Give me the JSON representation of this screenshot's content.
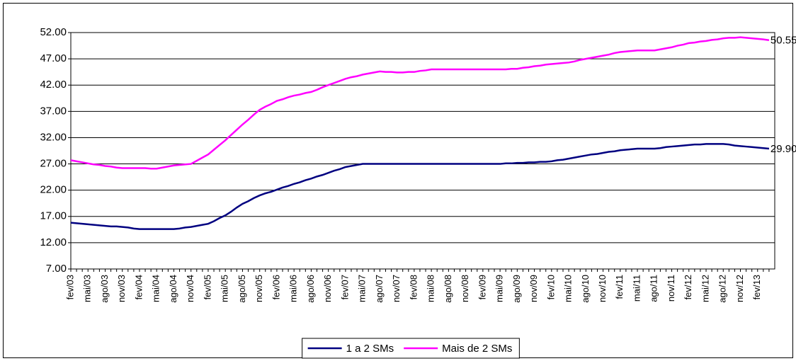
{
  "chart_data": {
    "type": "line",
    "categories": [
      "fev/03",
      null,
      null,
      "mai/03",
      null,
      null,
      "ago/03",
      null,
      null,
      "nov/03",
      null,
      null,
      "fev/04",
      null,
      null,
      "mai/04",
      null,
      null,
      "ago/04",
      null,
      null,
      "nov/04",
      null,
      null,
      "fev/05",
      null,
      null,
      "mai/05",
      null,
      null,
      "ago/05",
      null,
      null,
      "nov/05",
      null,
      null,
      "fev/06",
      null,
      null,
      "mai/06",
      null,
      null,
      "ago/06",
      null,
      null,
      "nov/06",
      null,
      null,
      "fev/07",
      null,
      null,
      "mai/07",
      null,
      null,
      "ago/07",
      null,
      null,
      "nov/07",
      null,
      null,
      "fev/08",
      null,
      null,
      "mai/08",
      null,
      null,
      "ago/08",
      null,
      null,
      "nov/08",
      null,
      null,
      "fev/09",
      null,
      null,
      "mai/09",
      null,
      null,
      "ago/09",
      null,
      null,
      "nov/09",
      null,
      null,
      "fev/10",
      null,
      null,
      "mai/10",
      null,
      null,
      "ago/10",
      null,
      null,
      "nov/10",
      null,
      null,
      "fev/11",
      null,
      null,
      "mai/11",
      null,
      null,
      "ago/11",
      null,
      null,
      "nov/11",
      null,
      null,
      "fev/12",
      null,
      null,
      "mai/12",
      null,
      null,
      "ago/12",
      null,
      null,
      "nov/12",
      null,
      null,
      "fev/13",
      null,
      null
    ],
    "series": [
      {
        "name": "1 a 2 SMs",
        "color": "#000080",
        "values": [
          15.8,
          15.7,
          15.6,
          15.5,
          15.4,
          15.3,
          15.2,
          15.1,
          15.1,
          15.0,
          14.9,
          14.7,
          14.6,
          14.6,
          14.6,
          14.6,
          14.6,
          14.6,
          14.6,
          14.7,
          14.9,
          15.0,
          15.2,
          15.4,
          15.6,
          16.1,
          16.7,
          17.2,
          17.9,
          18.7,
          19.4,
          19.9,
          20.5,
          21.0,
          21.4,
          21.7,
          22.1,
          22.5,
          22.8,
          23.2,
          23.5,
          23.9,
          24.2,
          24.6,
          24.9,
          25.3,
          25.7,
          26.0,
          26.4,
          26.6,
          26.8,
          27.0,
          27.0,
          27.0,
          27.0,
          27.0,
          27.0,
          27.0,
          27.0,
          27.0,
          27.0,
          27.0,
          27.0,
          27.0,
          27.0,
          27.0,
          27.0,
          27.0,
          27.0,
          27.0,
          27.0,
          27.0,
          27.0,
          27.0,
          27.0,
          27.0,
          27.1,
          27.1,
          27.2,
          27.2,
          27.3,
          27.3,
          27.4,
          27.4,
          27.5,
          27.7,
          27.8,
          28.0,
          28.2,
          28.4,
          28.6,
          28.8,
          28.9,
          29.1,
          29.3,
          29.4,
          29.6,
          29.7,
          29.8,
          29.9,
          29.9,
          29.9,
          29.9,
          30.0,
          30.2,
          30.3,
          30.4,
          30.5,
          30.6,
          30.7,
          30.7,
          30.8,
          30.8,
          30.8,
          30.8,
          30.7,
          30.5,
          30.4,
          30.3,
          30.2,
          30.1,
          30.0,
          29.9
        ],
        "value_labels": [
          null,
          null,
          null,
          null,
          null,
          null,
          null,
          null,
          null,
          null,
          null,
          null,
          null,
          null,
          null,
          null,
          null,
          null,
          null,
          null,
          null,
          null,
          null,
          null,
          null,
          null,
          null,
          null,
          null,
          null,
          null,
          null,
          null,
          null,
          null,
          null,
          null,
          null,
          null,
          null,
          null,
          null,
          null,
          null,
          null,
          null,
          null,
          null,
          null,
          null,
          null,
          null,
          null,
          null,
          null,
          null,
          null,
          null,
          null,
          null,
          null,
          null,
          null,
          null,
          null,
          null,
          null,
          null,
          null,
          null,
          null,
          null,
          null,
          null,
          null,
          null,
          null,
          null,
          null,
          null,
          null,
          null,
          null,
          null,
          null,
          null,
          null,
          null,
          null,
          null,
          null,
          null,
          null,
          null,
          null,
          null,
          null,
          null,
          null,
          null,
          null,
          null,
          null,
          null,
          null,
          null,
          null,
          null,
          null,
          null,
          null,
          null,
          null,
          null,
          null,
          null,
          null,
          null,
          null,
          null,
          null,
          null,
          "29.90"
        ]
      },
      {
        "name": "Mais de 2 SMs",
        "color": "#ff00ff",
        "values": [
          27.7,
          27.5,
          27.3,
          27.1,
          26.9,
          26.8,
          26.6,
          26.5,
          26.3,
          26.2,
          26.2,
          26.2,
          26.2,
          26.2,
          26.1,
          26.1,
          26.3,
          26.5,
          26.7,
          26.8,
          26.9,
          27.0,
          27.6,
          28.2,
          28.8,
          29.7,
          30.6,
          31.5,
          32.5,
          33.5,
          34.5,
          35.4,
          36.4,
          37.3,
          37.9,
          38.4,
          39.0,
          39.3,
          39.7,
          40.0,
          40.2,
          40.5,
          40.7,
          41.1,
          41.6,
          42.0,
          42.4,
          42.8,
          43.2,
          43.5,
          43.7,
          44.0,
          44.2,
          44.4,
          44.6,
          44.5,
          44.5,
          44.4,
          44.4,
          44.5,
          44.5,
          44.7,
          44.8,
          45.0,
          45.0,
          45.0,
          45.0,
          45.0,
          45.0,
          45.0,
          45.0,
          45.0,
          45.0,
          45.0,
          45.0,
          45.0,
          45.0,
          45.1,
          45.1,
          45.3,
          45.4,
          45.6,
          45.7,
          45.9,
          46.0,
          46.1,
          46.2,
          46.3,
          46.5,
          46.8,
          47.0,
          47.2,
          47.4,
          47.6,
          47.8,
          48.1,
          48.3,
          48.4,
          48.5,
          48.6,
          48.6,
          48.6,
          48.6,
          48.8,
          49.0,
          49.2,
          49.5,
          49.7,
          50.0,
          50.1,
          50.3,
          50.4,
          50.6,
          50.7,
          50.9,
          51.0,
          51.0,
          51.1,
          51.0,
          50.9,
          50.8,
          50.7,
          50.55
        ],
        "value_labels": [
          null,
          null,
          null,
          null,
          null,
          null,
          null,
          null,
          null,
          null,
          null,
          null,
          null,
          null,
          null,
          null,
          null,
          null,
          null,
          null,
          null,
          null,
          null,
          null,
          null,
          null,
          null,
          null,
          null,
          null,
          null,
          null,
          null,
          null,
          null,
          null,
          null,
          null,
          null,
          null,
          null,
          null,
          null,
          null,
          null,
          null,
          null,
          null,
          null,
          null,
          null,
          null,
          null,
          null,
          null,
          null,
          null,
          null,
          null,
          null,
          null,
          null,
          null,
          null,
          null,
          null,
          null,
          null,
          null,
          null,
          null,
          null,
          null,
          null,
          null,
          null,
          null,
          null,
          null,
          null,
          null,
          null,
          null,
          null,
          null,
          null,
          null,
          null,
          null,
          null,
          null,
          null,
          null,
          null,
          null,
          null,
          null,
          null,
          null,
          null,
          null,
          null,
          null,
          null,
          null,
          null,
          null,
          null,
          null,
          null,
          null,
          null,
          null,
          null,
          null,
          null,
          null,
          null,
          null,
          null,
          null,
          null,
          "50.55"
        ]
      }
    ],
    "ylim": [
      7,
      52
    ],
    "yticks": [
      {
        "value": 7,
        "label": "7.00"
      },
      {
        "value": 12,
        "label": "12.00"
      },
      {
        "value": 17,
        "label": "17.00"
      },
      {
        "value": 22,
        "label": "22.00"
      },
      {
        "value": 27,
        "label": "27.00"
      },
      {
        "value": 32,
        "label": "32.00"
      },
      {
        "value": 37,
        "label": "37.00"
      },
      {
        "value": 42,
        "label": "42.00"
      },
      {
        "value": 47,
        "label": "47.00"
      },
      {
        "value": 52,
        "label": "52.00"
      }
    ],
    "grid": true,
    "legend": "bottom"
  }
}
